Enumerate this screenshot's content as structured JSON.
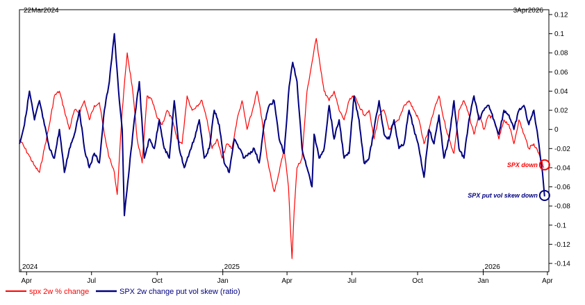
{
  "chart_data": {
    "type": "line",
    "start_label": "22Mar2024",
    "end_label": "3Apr2026",
    "x_start": "2024-03-22",
    "x_end": "2026-04-03",
    "xlim": [
      "2024-03-22",
      "2026-04-03"
    ],
    "ylim": [
      -0.145,
      0.12
    ],
    "grid": false,
    "y_ticks": [
      0.12,
      0.1,
      0.08,
      0.06,
      0.04,
      0.02,
      0,
      -0.02,
      -0.04,
      -0.06,
      -0.08,
      -0.1,
      -0.12,
      -0.14
    ],
    "y_tick_labels": [
      "0.12",
      "0.1",
      "0.08",
      "0.06",
      "0.04",
      "0.02",
      "0",
      "-0.02",
      "-0.04",
      "-0.06",
      "-0.08",
      "-0.1",
      "-0.12",
      "-0.14"
    ],
    "x_ticks": [
      {
        "date": "2024-04-01",
        "label": "Apr"
      },
      {
        "date": "2024-07-01",
        "label": "Jul"
      },
      {
        "date": "2024-10-01",
        "label": "Oct"
      },
      {
        "date": "2025-01-01",
        "label": "Jan"
      },
      {
        "date": "2025-04-01",
        "label": "Apr"
      },
      {
        "date": "2025-07-01",
        "label": "Jul"
      },
      {
        "date": "2025-10-01",
        "label": "Oct"
      },
      {
        "date": "2026-01-01",
        "label": "Jan"
      },
      {
        "date": "2026-04-01",
        "label": "Apr"
      }
    ],
    "year_labels": [
      {
        "date": "2024-03-24",
        "label": "2024"
      },
      {
        "date": "2025-01-01",
        "label": "2025"
      },
      {
        "date": "2026-01-01",
        "label": "2026"
      }
    ],
    "legend_position": "bottom-left",
    "series": [
      {
        "name": "spx 2w % change",
        "color": "#ff0000",
        "points": [
          [
            "2024-03-22",
            -0.01
          ],
          [
            "2024-04-05",
            -0.028
          ],
          [
            "2024-04-12",
            -0.038
          ],
          [
            "2024-04-19",
            -0.045
          ],
          [
            "2024-04-26",
            -0.02
          ],
          [
            "2024-05-03",
            0.005
          ],
          [
            "2024-05-10",
            0.035
          ],
          [
            "2024-05-17",
            0.04
          ],
          [
            "2024-05-24",
            0.02
          ],
          [
            "2024-05-31",
            0.0
          ],
          [
            "2024-06-07",
            0.02
          ],
          [
            "2024-06-14",
            0.018
          ],
          [
            "2024-06-21",
            0.03
          ],
          [
            "2024-06-28",
            0.01
          ],
          [
            "2024-07-05",
            0.025
          ],
          [
            "2024-07-12",
            0.028
          ],
          [
            "2024-07-19",
            -0.005
          ],
          [
            "2024-07-26",
            -0.03
          ],
          [
            "2024-08-02",
            -0.045
          ],
          [
            "2024-08-06",
            -0.068
          ],
          [
            "2024-08-13",
            0.02
          ],
          [
            "2024-08-20",
            0.08
          ],
          [
            "2024-08-27",
            0.045
          ],
          [
            "2024-09-03",
            -0.01
          ],
          [
            "2024-09-10",
            -0.035
          ],
          [
            "2024-09-17",
            0.035
          ],
          [
            "2024-09-24",
            0.03
          ],
          [
            "2024-10-01",
            0.012
          ],
          [
            "2024-10-08",
            0.005
          ],
          [
            "2024-10-15",
            0.02
          ],
          [
            "2024-10-22",
            0.01
          ],
          [
            "2024-10-29",
            -0.01
          ],
          [
            "2024-11-05",
            -0.015
          ],
          [
            "2024-11-12",
            0.035
          ],
          [
            "2024-11-19",
            0.02
          ],
          [
            "2024-11-26",
            0.025
          ],
          [
            "2024-12-03",
            0.03
          ],
          [
            "2024-12-10",
            0.01
          ],
          [
            "2024-12-17",
            -0.02
          ],
          [
            "2024-12-24",
            -0.01
          ],
          [
            "2024-12-31",
            -0.03
          ],
          [
            "2025-01-07",
            -0.015
          ],
          [
            "2025-01-14",
            -0.02
          ],
          [
            "2025-01-21",
            0.01
          ],
          [
            "2025-01-28",
            0.03
          ],
          [
            "2025-02-04",
            0.0
          ],
          [
            "2025-02-11",
            0.018
          ],
          [
            "2025-02-18",
            0.04
          ],
          [
            "2025-02-25",
            0.01
          ],
          [
            "2025-03-04",
            -0.03
          ],
          [
            "2025-03-11",
            -0.055
          ],
          [
            "2025-03-14",
            -0.065
          ],
          [
            "2025-03-21",
            -0.045
          ],
          [
            "2025-03-28",
            -0.02
          ],
          [
            "2025-04-03",
            -0.06
          ],
          [
            "2025-04-08",
            -0.135
          ],
          [
            "2025-04-11",
            -0.085
          ],
          [
            "2025-04-15",
            -0.04
          ],
          [
            "2025-04-22",
            -0.03
          ],
          [
            "2025-04-29",
            0.04
          ],
          [
            "2025-05-06",
            0.07
          ],
          [
            "2025-05-12",
            0.095
          ],
          [
            "2025-05-16",
            0.075
          ],
          [
            "2025-05-23",
            0.04
          ],
          [
            "2025-05-30",
            0.03
          ],
          [
            "2025-06-06",
            0.04
          ],
          [
            "2025-06-13",
            0.02
          ],
          [
            "2025-06-20",
            0.01
          ],
          [
            "2025-06-27",
            0.03
          ],
          [
            "2025-07-04",
            0.035
          ],
          [
            "2025-07-11",
            0.025
          ],
          [
            "2025-07-18",
            0.015
          ],
          [
            "2025-07-25",
            0.02
          ],
          [
            "2025-08-01",
            -0.01
          ],
          [
            "2025-08-08",
            0.015
          ],
          [
            "2025-08-15",
            0.02
          ],
          [
            "2025-08-22",
            0.0
          ],
          [
            "2025-08-29",
            0.005
          ],
          [
            "2025-09-05",
            0.01
          ],
          [
            "2025-09-12",
            0.025
          ],
          [
            "2025-09-19",
            0.03
          ],
          [
            "2025-09-26",
            0.02
          ],
          [
            "2025-10-03",
            0.01
          ],
          [
            "2025-10-10",
            -0.015
          ],
          [
            "2025-10-17",
            0.0
          ],
          [
            "2025-10-24",
            0.02
          ],
          [
            "2025-10-31",
            0.035
          ],
          [
            "2025-11-07",
            0.01
          ],
          [
            "2025-11-14",
            -0.01
          ],
          [
            "2025-11-21",
            -0.025
          ],
          [
            "2025-11-28",
            0.02
          ],
          [
            "2025-12-05",
            0.03
          ],
          [
            "2025-12-12",
            0.015
          ],
          [
            "2025-12-19",
            -0.005
          ],
          [
            "2025-12-26",
            0.015
          ],
          [
            "2026-01-02",
            0.0
          ],
          [
            "2026-01-09",
            0.015
          ],
          [
            "2026-01-16",
            0.01
          ],
          [
            "2026-01-23",
            -0.01
          ],
          [
            "2026-01-30",
            0.01
          ],
          [
            "2026-02-06",
            0.005
          ],
          [
            "2026-02-13",
            -0.015
          ],
          [
            "2026-02-20",
            0.01
          ],
          [
            "2026-02-27",
            -0.005
          ],
          [
            "2026-03-06",
            -0.02
          ],
          [
            "2026-03-13",
            -0.015
          ],
          [
            "2026-03-20",
            -0.025
          ],
          [
            "2026-03-27",
            -0.04
          ]
        ]
      },
      {
        "name": "SPX 2w change put vol skew (ratio)",
        "color": "#000080",
        "points": [
          [
            "2024-03-22",
            -0.015
          ],
          [
            "2024-03-29",
            0.005
          ],
          [
            "2024-04-05",
            0.04
          ],
          [
            "2024-04-12",
            0.01
          ],
          [
            "2024-04-19",
            0.03
          ],
          [
            "2024-04-26",
            0.005
          ],
          [
            "2024-05-03",
            -0.02
          ],
          [
            "2024-05-10",
            -0.03
          ],
          [
            "2024-05-17",
            0.0
          ],
          [
            "2024-05-24",
            -0.045
          ],
          [
            "2024-05-31",
            -0.02
          ],
          [
            "2024-06-07",
            -0.005
          ],
          [
            "2024-06-14",
            0.02
          ],
          [
            "2024-06-21",
            -0.02
          ],
          [
            "2024-06-28",
            -0.04
          ],
          [
            "2024-07-05",
            -0.025
          ],
          [
            "2024-07-12",
            -0.035
          ],
          [
            "2024-07-19",
            0.02
          ],
          [
            "2024-07-26",
            0.05
          ],
          [
            "2024-08-02",
            0.1
          ],
          [
            "2024-08-09",
            0.03
          ],
          [
            "2024-08-13",
            0.0
          ],
          [
            "2024-08-16",
            -0.09
          ],
          [
            "2024-08-23",
            -0.04
          ],
          [
            "2024-08-30",
            0.01
          ],
          [
            "2024-09-06",
            0.05
          ],
          [
            "2024-09-13",
            -0.03
          ],
          [
            "2024-09-20",
            -0.01
          ],
          [
            "2024-09-27",
            -0.02
          ],
          [
            "2024-10-04",
            0.01
          ],
          [
            "2024-10-11",
            -0.02
          ],
          [
            "2024-10-18",
            -0.03
          ],
          [
            "2024-10-25",
            0.03
          ],
          [
            "2024-11-01",
            -0.02
          ],
          [
            "2024-11-08",
            -0.04
          ],
          [
            "2024-11-15",
            -0.025
          ],
          [
            "2024-11-22",
            -0.01
          ],
          [
            "2024-11-29",
            0.01
          ],
          [
            "2024-12-06",
            -0.03
          ],
          [
            "2024-12-13",
            -0.02
          ],
          [
            "2024-12-20",
            0.02
          ],
          [
            "2024-12-27",
            0.005
          ],
          [
            "2025-01-03",
            -0.035
          ],
          [
            "2025-01-10",
            -0.045
          ],
          [
            "2025-01-17",
            -0.01
          ],
          [
            "2025-01-24",
            -0.02
          ],
          [
            "2025-01-31",
            -0.03
          ],
          [
            "2025-02-07",
            -0.025
          ],
          [
            "2025-02-14",
            -0.02
          ],
          [
            "2025-02-21",
            -0.035
          ],
          [
            "2025-02-28",
            0.005
          ],
          [
            "2025-03-07",
            0.025
          ],
          [
            "2025-03-14",
            0.03
          ],
          [
            "2025-03-21",
            -0.01
          ],
          [
            "2025-03-28",
            -0.025
          ],
          [
            "2025-04-04",
            0.045
          ],
          [
            "2025-04-09",
            0.07
          ],
          [
            "2025-04-15",
            0.05
          ],
          [
            "2025-04-22",
            -0.02
          ],
          [
            "2025-04-29",
            -0.04
          ],
          [
            "2025-05-06",
            -0.06
          ],
          [
            "2025-05-09",
            -0.005
          ],
          [
            "2025-05-16",
            -0.03
          ],
          [
            "2025-05-23",
            -0.02
          ],
          [
            "2025-05-30",
            0.025
          ],
          [
            "2025-06-06",
            -0.01
          ],
          [
            "2025-06-13",
            0.01
          ],
          [
            "2025-06-20",
            -0.03
          ],
          [
            "2025-06-27",
            -0.025
          ],
          [
            "2025-07-04",
            0.035
          ],
          [
            "2025-07-11",
            0.01
          ],
          [
            "2025-07-18",
            -0.035
          ],
          [
            "2025-07-25",
            -0.03
          ],
          [
            "2025-08-01",
            0.0
          ],
          [
            "2025-08-08",
            0.03
          ],
          [
            "2025-08-15",
            -0.005
          ],
          [
            "2025-08-22",
            -0.01
          ],
          [
            "2025-08-29",
            0.01
          ],
          [
            "2025-09-05",
            -0.02
          ],
          [
            "2025-09-12",
            -0.015
          ],
          [
            "2025-09-19",
            0.02
          ],
          [
            "2025-09-26",
            0.0
          ],
          [
            "2025-10-03",
            -0.02
          ],
          [
            "2025-10-10",
            -0.05
          ],
          [
            "2025-10-17",
            0.0
          ],
          [
            "2025-10-24",
            -0.015
          ],
          [
            "2025-10-31",
            0.015
          ],
          [
            "2025-11-07",
            -0.03
          ],
          [
            "2025-11-14",
            -0.01
          ],
          [
            "2025-11-21",
            0.03
          ],
          [
            "2025-11-28",
            -0.02
          ],
          [
            "2025-12-05",
            -0.03
          ],
          [
            "2025-12-12",
            0.01
          ],
          [
            "2025-12-19",
            0.035
          ],
          [
            "2025-12-26",
            0.01
          ],
          [
            "2026-01-02",
            0.02
          ],
          [
            "2026-01-09",
            0.025
          ],
          [
            "2026-01-16",
            0.01
          ],
          [
            "2026-01-23",
            -0.005
          ],
          [
            "2026-01-30",
            0.02
          ],
          [
            "2026-02-06",
            0.015
          ],
          [
            "2026-02-13",
            0.0
          ],
          [
            "2026-02-20",
            0.02
          ],
          [
            "2026-02-27",
            0.025
          ],
          [
            "2026-03-06",
            0.005
          ],
          [
            "2026-03-13",
            0.02
          ],
          [
            "2026-03-20",
            -0.015
          ],
          [
            "2026-03-25",
            -0.045
          ],
          [
            "2026-03-28",
            -0.07
          ]
        ]
      }
    ],
    "annotations": [
      {
        "text": "SPX down",
        "color": "#ff0000",
        "date": "2026-03-28",
        "value": -0.037
      },
      {
        "text": "SPX put vol skew down",
        "color": "#000080",
        "date": "2026-03-28",
        "value": -0.069
      }
    ]
  }
}
